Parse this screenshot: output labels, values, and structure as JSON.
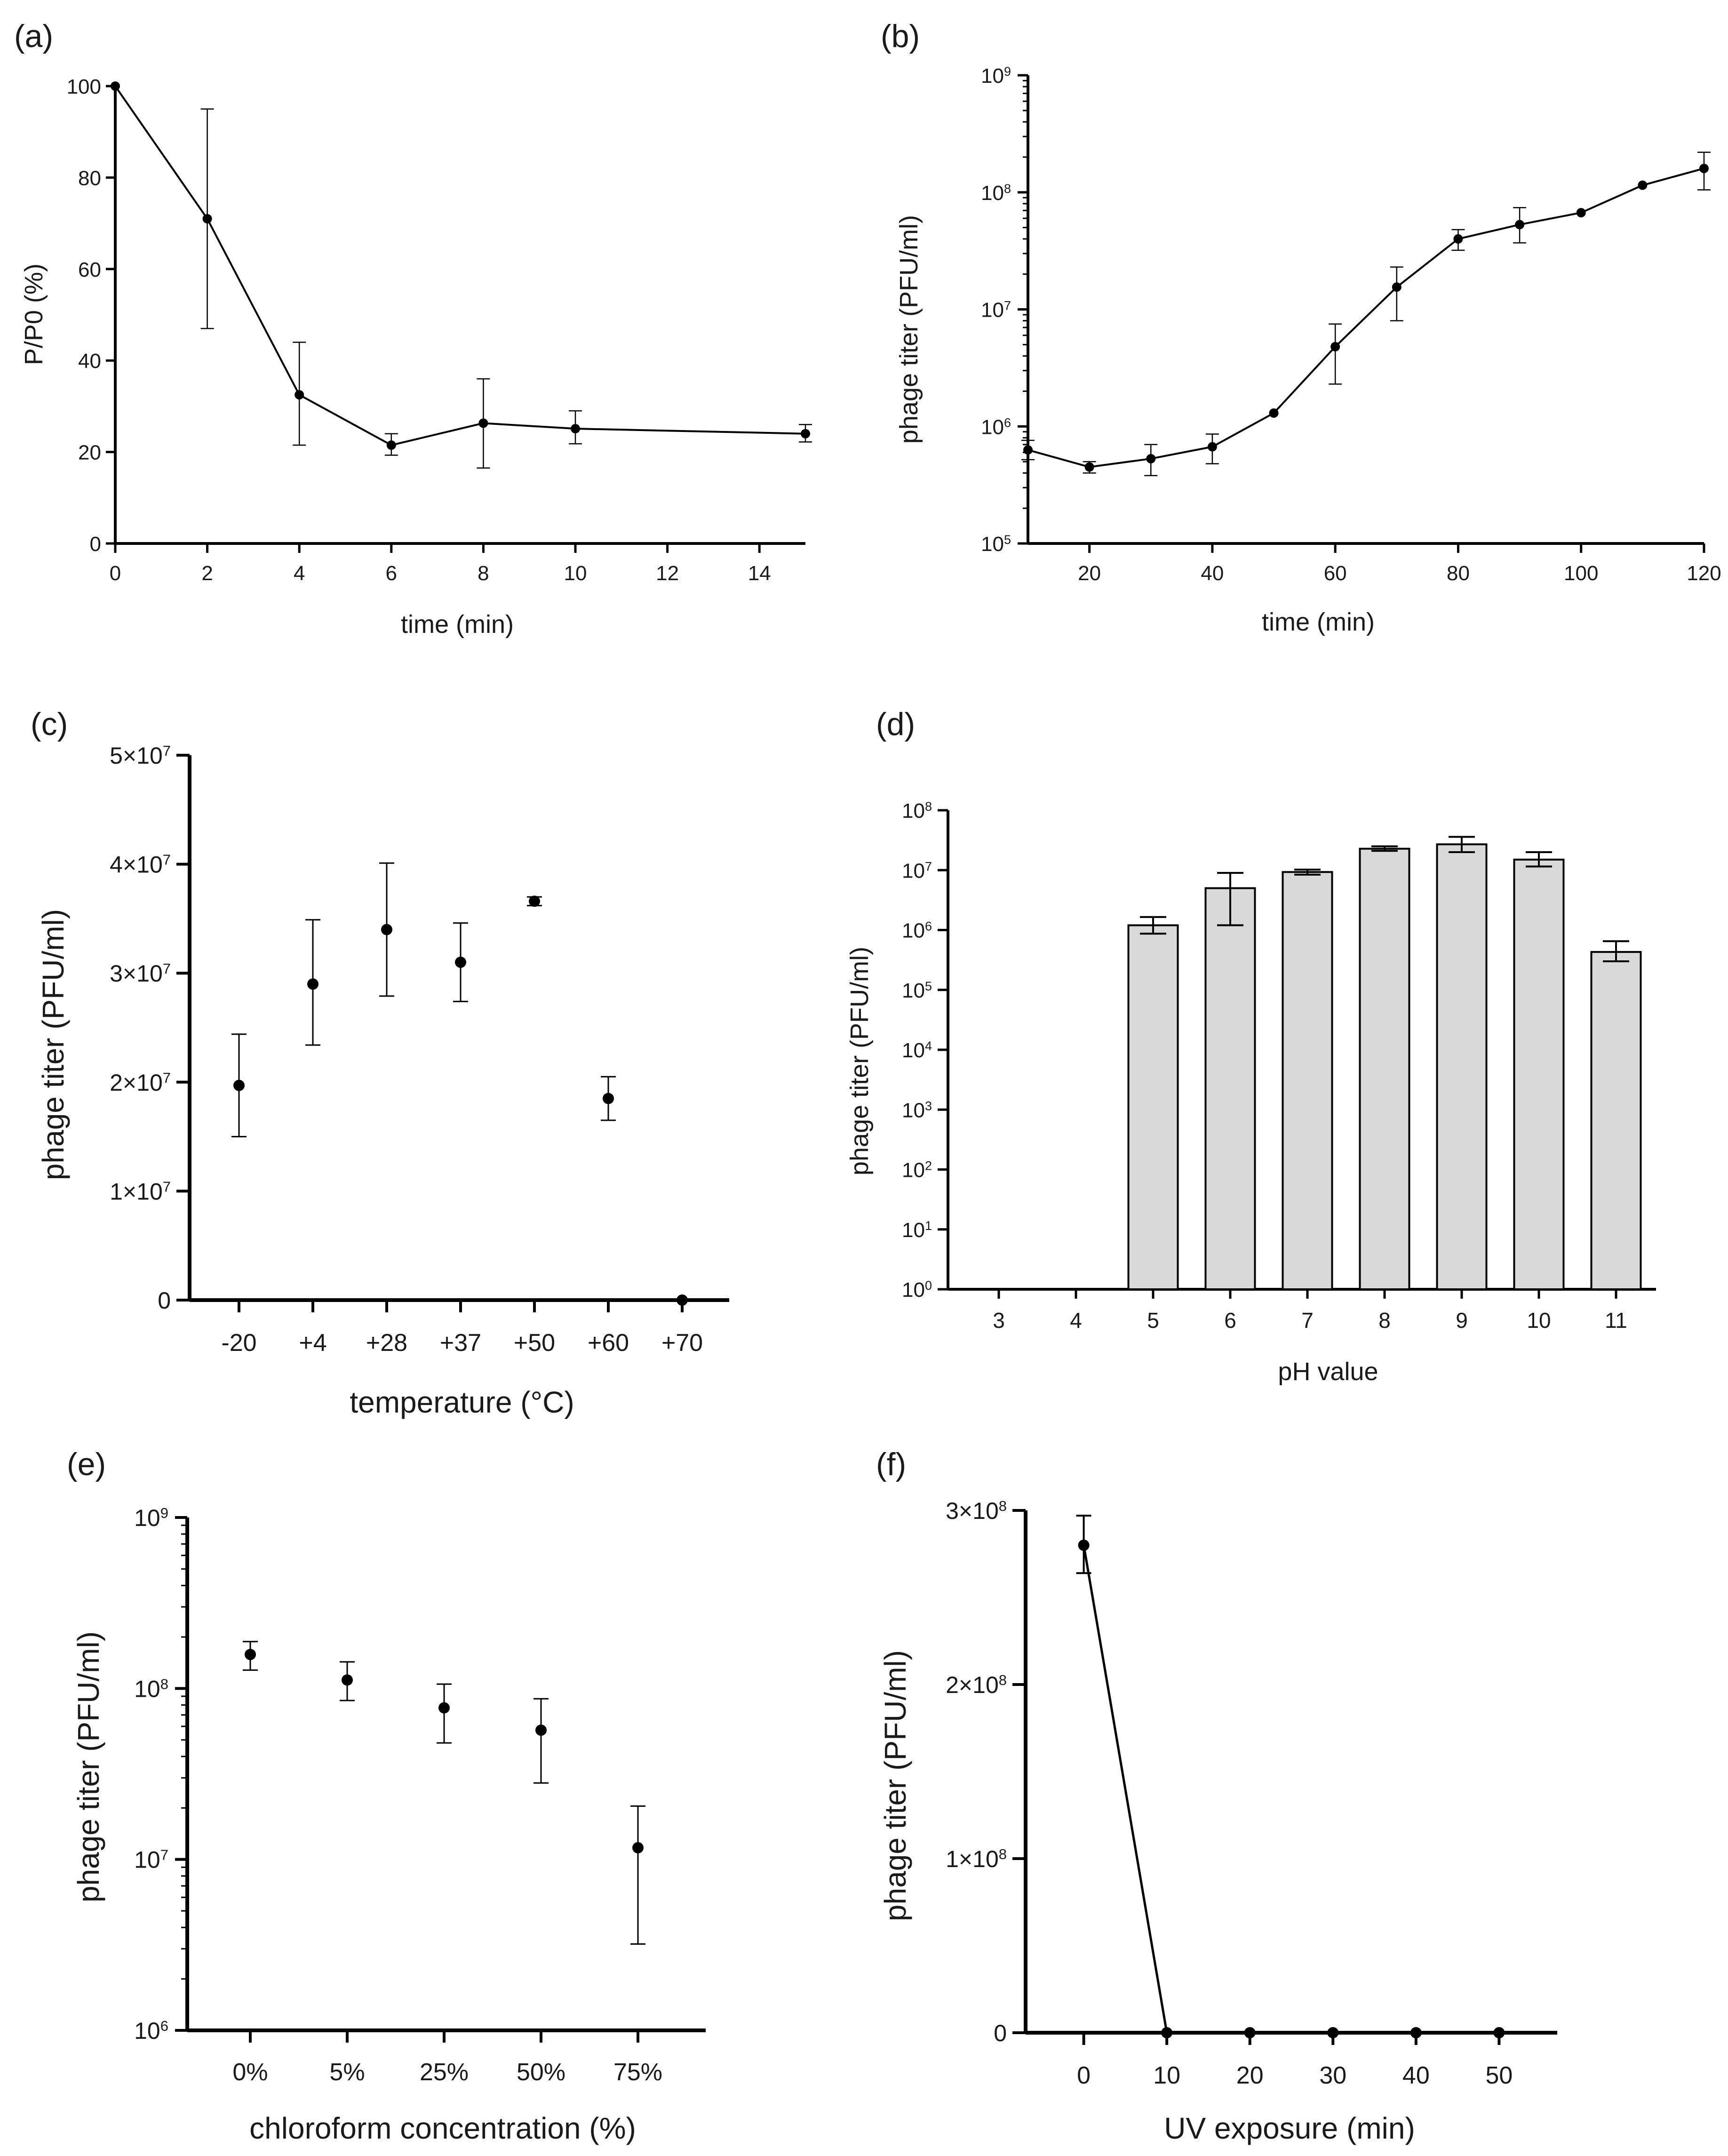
{
  "chart_data": [
    {
      "panel": "(a)",
      "type": "line",
      "xlabel": "time (min)",
      "ylabel": "P/P0 (%)",
      "xlim": [
        0,
        15
      ],
      "ylim": [
        0,
        100
      ],
      "xticks": [
        0,
        2,
        4,
        6,
        8,
        10,
        12,
        14
      ],
      "yticks": [
        0,
        20,
        40,
        60,
        80,
        100
      ],
      "x": [
        0,
        2,
        4,
        6,
        8,
        10,
        15
      ],
      "y": [
        100,
        71,
        32.5,
        21.5,
        26.3,
        25.1,
        24
      ],
      "err_low": [
        100,
        47,
        21.5,
        19.3,
        16.5,
        21.8,
        22.2
      ],
      "err_high": [
        100,
        95,
        44,
        24,
        36,
        29,
        26
      ]
    },
    {
      "panel": "(b)",
      "type": "line",
      "scale": "log",
      "xlabel": "time (min)",
      "ylabel": "phage titer (PFU/ml)",
      "xlim": [
        10,
        120
      ],
      "ylim_exp": [
        5,
        9
      ],
      "xticks": [
        20,
        40,
        60,
        80,
        100,
        120
      ],
      "yticks_exp": [
        5,
        6,
        7,
        8,
        9
      ],
      "x": [
        10,
        20,
        30,
        40,
        50,
        60,
        70,
        80,
        90,
        100,
        110,
        120
      ],
      "y": [
        630000,
        450000,
        530000,
        670000,
        1300000,
        4800000,
        15500000,
        40000000,
        53000000,
        67000000,
        115000000,
        160000000
      ],
      "err_low": [
        520000,
        400000,
        380000,
        480000,
        1300000,
        2300000,
        8000000,
        32000000,
        37000000,
        67000000,
        115000000,
        105000000
      ],
      "err_high": [
        760000,
        500000,
        700000,
        860000,
        1300000,
        7500000,
        23000000,
        48000000,
        74000000,
        67000000,
        115000000,
        220000000
      ]
    },
    {
      "panel": "(c)",
      "type": "scatter",
      "xlabel": "temperature (°C)",
      "ylabel": "phage titer (PFU/ml)",
      "ylim": [
        0,
        50000000
      ],
      "ytick_labels": [
        "0",
        "1×10",
        "2×10",
        "3×10",
        "4×10",
        "5×10"
      ],
      "ytick_exp": "7",
      "categories": [
        "-20",
        "+4",
        "+28",
        "+37",
        "+50",
        "+60",
        "+70"
      ],
      "values": [
        19700000,
        29000000,
        34000000,
        31000000,
        36600000,
        18500000,
        0
      ],
      "err_low": [
        15000000,
        23400000,
        27900000,
        27400000,
        36200000,
        16500000,
        0
      ],
      "err_high": [
        24400000,
        34900000,
        40100000,
        34600000,
        37000000,
        20500000,
        0
      ]
    },
    {
      "panel": "(d)",
      "type": "bar",
      "scale": "log",
      "xlabel": "pH value",
      "ylabel": "phage titer (PFU/ml)",
      "ylim_exp": [
        0,
        8
      ],
      "yticks_exp": [
        0,
        1,
        2,
        3,
        4,
        5,
        6,
        7,
        8
      ],
      "categories": [
        "3",
        "4",
        "5",
        "6",
        "7",
        "8",
        "9",
        "10",
        "11"
      ],
      "values": [
        0,
        0,
        1200000,
        5000000,
        9300000,
        22800000,
        27000000,
        15000000,
        430000
      ],
      "err_low": [
        0,
        0,
        870000,
        1200000,
        8400000,
        21000000,
        20000000,
        11500000,
        300000
      ],
      "err_high": [
        0,
        0,
        1650000,
        9000000,
        10200000,
        25000000,
        36000000,
        20000000,
        650000
      ],
      "bar_color": "#d9d9d9"
    },
    {
      "panel": "(e)",
      "type": "scatter",
      "scale": "log",
      "xlabel": "chloroform concentration (%)",
      "ylabel": "phage titer (PFU/ml)",
      "ylim_exp": [
        6,
        9
      ],
      "yticks_exp": [
        6,
        7,
        8,
        9
      ],
      "categories": [
        "0%",
        "5%",
        "25%",
        "50%",
        "75%"
      ],
      "values": [
        158000000,
        112000000,
        77000000,
        57000000,
        11700000
      ],
      "err_low": [
        128000000,
        85000000,
        48000000,
        28000000,
        3200000
      ],
      "err_high": [
        188000000,
        143000000,
        106000000,
        87000000,
        20500000
      ]
    },
    {
      "panel": "(f)",
      "type": "line",
      "xlabel": "UV exposure (min)",
      "ylabel": "phage titer (PFU/ml)",
      "xlim": [
        -7,
        57
      ],
      "ylim": [
        0,
        300000000
      ],
      "xticks": [
        0,
        10,
        20,
        30,
        40,
        50
      ],
      "ytick_labels": [
        "0",
        "1×10",
        "2×10",
        "3×10"
      ],
      "ytick_exp": "8",
      "x": [
        0,
        10,
        20,
        30,
        40,
        50
      ],
      "y": [
        280000000,
        0,
        0,
        0,
        0,
        0
      ],
      "err_low": [
        264000000,
        0,
        0,
        0,
        0,
        0
      ],
      "err_high": [
        297000000,
        0,
        0,
        0,
        0,
        0
      ]
    }
  ]
}
